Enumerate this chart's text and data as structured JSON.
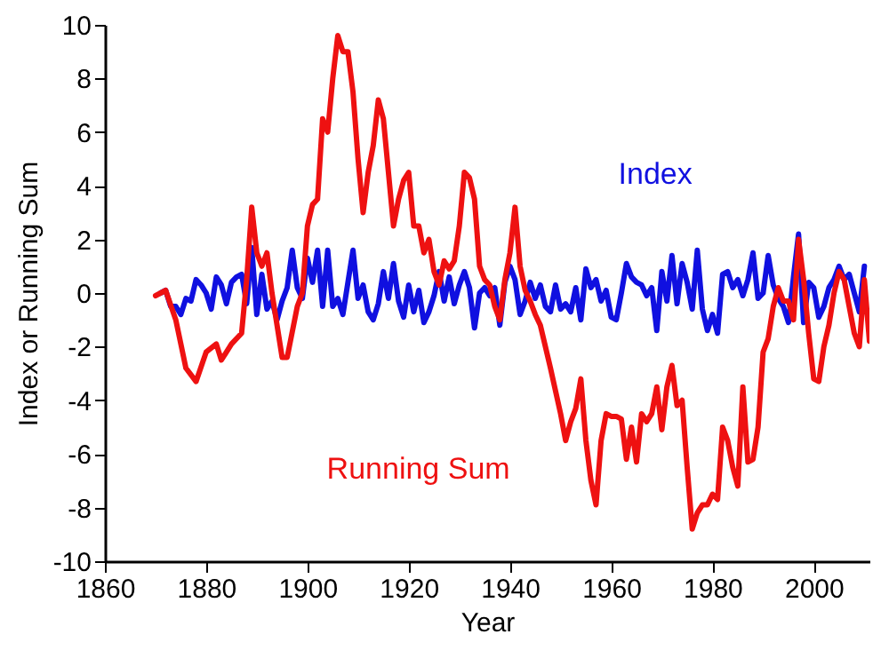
{
  "chart_data": {
    "type": "line",
    "xlabel": "Year",
    "ylabel": "Index or Running Sum",
    "xlim": [
      1860,
      2011
    ],
    "xticks": [
      1860,
      1880,
      1900,
      1920,
      1940,
      1960,
      1980,
      2000
    ],
    "ylim": [
      -10,
      10
    ],
    "yticks": [
      -10,
      -8,
      -6,
      -4,
      -2,
      0,
      2,
      4,
      6,
      8,
      10
    ],
    "grid": false,
    "line_style": "solid",
    "marker": "none",
    "series": [
      {
        "name": "Index",
        "color": "#1010e0",
        "x": [
          1871,
          1872,
          1873,
          1874,
          1875,
          1876,
          1877,
          1878,
          1879,
          1880,
          1881,
          1882,
          1883,
          1884,
          1885,
          1886,
          1887,
          1888,
          1889,
          1890,
          1891,
          1892,
          1893,
          1894,
          1895,
          1896,
          1897,
          1898,
          1899,
          1900,
          1901,
          1902,
          1903,
          1904,
          1905,
          1906,
          1907,
          1908,
          1909,
          1910,
          1911,
          1912,
          1913,
          1914,
          1915,
          1916,
          1917,
          1918,
          1919,
          1920,
          1921,
          1922,
          1923,
          1924,
          1925,
          1926,
          1927,
          1928,
          1929,
          1930,
          1931,
          1932,
          1933,
          1934,
          1935,
          1936,
          1937,
          1938,
          1939,
          1940,
          1941,
          1942,
          1943,
          1944,
          1945,
          1946,
          1947,
          1948,
          1949,
          1950,
          1951,
          1952,
          1953,
          1954,
          1955,
          1956,
          1957,
          1958,
          1959,
          1960,
          1961,
          1962,
          1963,
          1964,
          1965,
          1966,
          1967,
          1968,
          1969,
          1970,
          1971,
          1972,
          1973,
          1974,
          1975,
          1976,
          1977,
          1978,
          1979,
          1980,
          1981,
          1982,
          1983,
          1984,
          1985,
          1986,
          1987,
          1988,
          1989,
          1990,
          1991,
          1992,
          1993,
          1994,
          1995,
          1996,
          1997,
          1998,
          1999,
          2000,
          2001,
          2002,
          2003,
          2004,
          2005,
          2006,
          2007,
          2008,
          2009,
          2010
        ],
        "values": [
          0,
          0.1,
          -0.5,
          -0.5,
          -0.8,
          -0.2,
          -0.3,
          0.5,
          0.3,
          0,
          -0.6,
          0.6,
          0.3,
          -0.4,
          0.4,
          0.6,
          0.7,
          -0.4,
          1.7,
          -0.8,
          0.7,
          -0.6,
          -0.3,
          -1.0,
          -0.3,
          0.2,
          1.6,
          0.2,
          -0.2,
          1.3,
          0.4,
          1.6,
          -0.5,
          1.6,
          -0.5,
          -0.2,
          -0.8,
          0.4,
          1.6,
          -0.2,
          0.3,
          -0.7,
          -1.0,
          -0.4,
          0.8,
          -0.2,
          1.1,
          -0.3,
          -0.9,
          0.3,
          -0.7,
          0.1,
          -1.1,
          -0.7,
          -0.1,
          0.8,
          -0.3,
          0.6,
          -0.4,
          0.3,
          0.8,
          0.2,
          -1.3,
          0.0,
          0.2,
          -0.1,
          0.2,
          -1.2,
          0.4,
          1.0,
          0.5,
          -0.8,
          -0.3,
          0.4,
          -0.2,
          0.3,
          -0.5,
          -0.7,
          0.3,
          -0.6,
          -0.4,
          -0.7,
          0.2,
          -1.0,
          0.9,
          0.2,
          0.5,
          -0.3,
          0.1,
          -0.9,
          -1.0,
          0.0,
          1.1,
          0.6,
          0.4,
          0.3,
          -0.1,
          0.2,
          -1.4,
          0.8,
          -0.3,
          1.4,
          -0.4,
          1.1,
          0.4,
          -0.6,
          1.6,
          -0.6,
          -1.4,
          -0.8,
          -1.5,
          0.7,
          0.8,
          0.2,
          0.5,
          -0.1,
          0.5,
          1.5,
          -0.2,
          0.0,
          1.4,
          0.3,
          -0.2,
          -0.5,
          -1.1,
          0.6,
          2.2,
          -1.1,
          0.4,
          0.2,
          -0.9,
          -0.5,
          0.2,
          0.5,
          1.0,
          0.5,
          0.7,
          0.0,
          -0.7,
          1.0
        ]
      },
      {
        "name": "Running Sum",
        "color": "#ee1111",
        "x": [
          1870,
          1872,
          1874,
          1876,
          1878,
          1880,
          1882,
          1883,
          1885,
          1887,
          1888,
          1889,
          1890,
          1891,
          1892,
          1893,
          1895,
          1896,
          1898,
          1899,
          1900,
          1901,
          1902,
          1903,
          1904,
          1905,
          1906,
          1907,
          1908,
          1909,
          1910,
          1911,
          1912,
          1913,
          1914,
          1915,
          1916,
          1917,
          1918,
          1919,
          1920,
          1921,
          1922,
          1923,
          1924,
          1925,
          1926,
          1927,
          1928,
          1929,
          1930,
          1931,
          1932,
          1933,
          1934,
          1935,
          1936,
          1937,
          1938,
          1939,
          1940,
          1941,
          1942,
          1943,
          1944,
          1945,
          1946,
          1948,
          1950,
          1951,
          1952,
          1953,
          1954,
          1955,
          1956,
          1957,
          1958,
          1959,
          1960,
          1961,
          1962,
          1963,
          1964,
          1965,
          1966,
          1967,
          1968,
          1969,
          1970,
          1971,
          1972,
          1973,
          1974,
          1975,
          1976,
          1977,
          1978,
          1979,
          1980,
          1981,
          1982,
          1983,
          1984,
          1985,
          1986,
          1987,
          1988,
          1989,
          1990,
          1991,
          1992,
          1993,
          1994,
          1995,
          1996,
          1997,
          1998,
          1999,
          2000,
          2001,
          2002,
          2003,
          2004,
          2005,
          2006,
          2007,
          2008,
          2009,
          2010,
          2011
        ],
        "values": [
          -0.1,
          0.1,
          -1.0,
          -2.8,
          -3.3,
          -2.2,
          -1.9,
          -2.5,
          -1.9,
          -1.5,
          0.5,
          3.2,
          1.5,
          1.0,
          1.5,
          0.0,
          -2.4,
          -2.4,
          -0.5,
          0.0,
          2.5,
          3.3,
          3.5,
          6.5,
          6.0,
          8.0,
          9.6,
          9.0,
          9.0,
          7.5,
          5.0,
          3.0,
          4.5,
          5.5,
          7.2,
          6.5,
          4.5,
          2.5,
          3.5,
          4.2,
          4.5,
          2.5,
          2.5,
          1.5,
          2.0,
          0.8,
          0.3,
          1.2,
          0.9,
          1.2,
          2.5,
          4.5,
          4.3,
          3.5,
          1.0,
          0.5,
          0.3,
          -0.5,
          -1.0,
          0.5,
          1.5,
          3.2,
          1.0,
          0.1,
          -0.3,
          -0.8,
          -1.2,
          -2.8,
          -4.5,
          -5.5,
          -4.8,
          -4.3,
          -3.2,
          -5.5,
          -7.0,
          -7.9,
          -5.5,
          -4.5,
          -4.6,
          -4.6,
          -4.7,
          -6.2,
          -5.0,
          -6.3,
          -4.5,
          -4.8,
          -4.5,
          -3.5,
          -5.1,
          -3.5,
          -2.7,
          -4.2,
          -4.0,
          -6.5,
          -8.8,
          -8.2,
          -7.9,
          -7.9,
          -7.5,
          -7.7,
          -5.0,
          -5.5,
          -6.5,
          -7.2,
          -3.5,
          -6.3,
          -6.2,
          -5.0,
          -2.2,
          -1.7,
          -0.5,
          0.2,
          -0.3,
          -0.3,
          -1.0,
          2.0,
          0.5,
          -1.5,
          -3.2,
          -3.3,
          -2.0,
          -1.2,
          0.0,
          0.8,
          0.5,
          -0.5,
          -1.5,
          -2.0,
          0.5,
          -1.8
        ]
      }
    ]
  }
}
